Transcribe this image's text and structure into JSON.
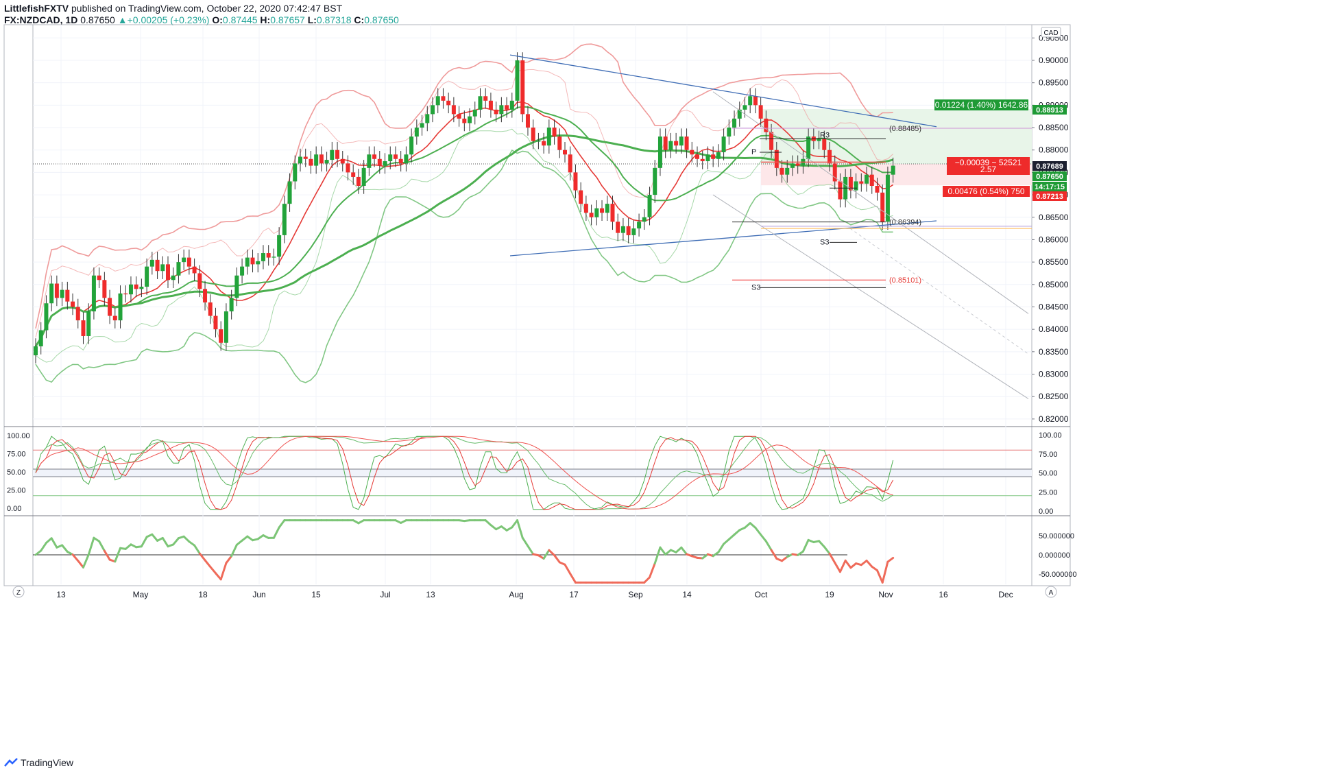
{
  "header": {
    "author": "LittlefishFXTV",
    "published_text": "published on TradingView.com, October 22, 2020 07:42:47 BST",
    "symbol": "FX:NZDCAD, 1D",
    "last": "0.87650",
    "change": "+0.00205 (+0.23%)",
    "o_label": "O:",
    "o": "0.87445",
    "h_label": "H:",
    "h": "0.87657",
    "l_label": "L:",
    "l": "0.87318",
    "c_label": "C:",
    "c": "0.87650"
  },
  "footer": {
    "brand": "TradingView"
  },
  "colors": {
    "up": "#22a33a",
    "down": "#ef2b2b",
    "ma_slow": "#4caf50",
    "ma_fast": "#e53935",
    "band_red": "#ef9a9a",
    "band_green": "#81c784",
    "trendline": "#3f6db5",
    "long_box": "#e8f5e9",
    "short_box": "#fde7e9"
  },
  "chart_data": [
    {
      "type": "candlestick",
      "pair": "NZDCAD",
      "timeframe": "1D",
      "currency": "CAD",
      "x_ticks": [
        "13",
        "May",
        "18",
        "Jun",
        "15",
        "Jul",
        "13",
        "Aug",
        "17",
        "Sep",
        "14",
        "Oct",
        "19",
        "Nov",
        "16",
        "Dec"
      ],
      "y_ticks": [
        "0.90500",
        "0.90000",
        "0.89500",
        "0.89000",
        "0.88500",
        "0.88000",
        "0.87500",
        "0.87000",
        "0.86500",
        "0.86000",
        "0.85500",
        "0.85000",
        "0.84500",
        "0.84000",
        "0.83500",
        "0.83000",
        "0.82500",
        "0.82000"
      ],
      "ylim": [
        0.8183,
        0.9078
      ],
      "price_labels": [
        {
          "text": "0.88913",
          "kind": "green"
        },
        {
          "text": "0.87689",
          "kind": "dark"
        },
        {
          "text": "0.87650",
          "kind": "green"
        },
        {
          "text": "14:17:15",
          "kind": "green"
        },
        {
          "text": "0.87213",
          "kind": "red"
        }
      ],
      "trade_labels": [
        {
          "text": "0.01224 (1.40%) 1642.86",
          "kind": "green"
        },
        {
          "text": "−0.00039 ~ 52521",
          "kind": "red"
        },
        {
          "text": "2.57",
          "kind": "red"
        },
        {
          "text": "0.00476 (0.54%) 750",
          "kind": "red"
        }
      ],
      "pivot_labels": [
        "R3",
        "P",
        "S3",
        "S3"
      ],
      "level_labels": [
        {
          "text": "(0.88485)",
          "value": 0.88485
        },
        {
          "text": "(0.86394)",
          "value": 0.86394
        },
        {
          "text": "(0.85101)",
          "value": 0.85101
        }
      ],
      "closes": [
        0.8362,
        0.8398,
        0.8458,
        0.8502,
        0.847,
        0.8488,
        0.8462,
        0.845,
        0.842,
        0.8385,
        0.844,
        0.852,
        0.851,
        0.847,
        0.843,
        0.842,
        0.848,
        0.8478,
        0.85,
        0.849,
        0.8495,
        0.854,
        0.8555,
        0.853,
        0.8545,
        0.851,
        0.852,
        0.855,
        0.856,
        0.854,
        0.8525,
        0.849,
        0.846,
        0.843,
        0.84,
        0.837,
        0.844,
        0.847,
        0.852,
        0.854,
        0.856,
        0.8545,
        0.8552,
        0.857,
        0.856,
        0.8562,
        0.861,
        0.868,
        0.873,
        0.877,
        0.8785,
        0.878,
        0.8765,
        0.879,
        0.877,
        0.8778,
        0.88,
        0.878,
        0.877,
        0.875,
        0.874,
        0.872,
        0.876,
        0.879,
        0.878,
        0.8765,
        0.8775,
        0.879,
        0.878,
        0.877,
        0.879,
        0.883,
        0.885,
        0.886,
        0.888,
        0.89,
        0.892,
        0.891,
        0.89,
        0.888,
        0.887,
        0.886,
        0.8875,
        0.889,
        0.892,
        0.891,
        0.889,
        0.888,
        0.89,
        0.889,
        0.891,
        0.9,
        0.888,
        0.885,
        0.882,
        0.882,
        0.881,
        0.885,
        0.883,
        0.88,
        0.879,
        0.875,
        0.871,
        0.868,
        0.866,
        0.865,
        0.867,
        0.866,
        0.868,
        0.864,
        0.8615,
        0.863,
        0.861,
        0.8625,
        0.864,
        0.865,
        0.87,
        0.876,
        0.883,
        0.88,
        0.882,
        0.881,
        0.883,
        0.88,
        0.879,
        0.878,
        0.8775,
        0.879,
        0.878,
        0.8795,
        0.883,
        0.885,
        0.887,
        0.889,
        0.89,
        0.892,
        0.89,
        0.887,
        0.884,
        0.88,
        0.876,
        0.8745,
        0.876,
        0.877,
        0.8765,
        0.878,
        0.883,
        0.882,
        0.8825,
        0.88,
        0.877,
        0.873,
        0.869,
        0.874,
        0.871,
        0.873,
        0.8725,
        0.8745,
        0.872,
        0.8705,
        0.864,
        0.8745,
        0.8765
      ]
    },
    {
      "type": "line",
      "name": "stochastic",
      "y_ticks": [
        "100.00",
        "75.00",
        "50.00",
        "25.00",
        "0.00"
      ],
      "y_ticks_left": [
        "100.00",
        "75.00",
        "50.00",
        "25.00",
        "0.00"
      ],
      "ylim": [
        0,
        100
      ],
      "levels": [
        80,
        55,
        45,
        20
      ]
    },
    {
      "type": "line",
      "name": "oscillator",
      "y_ticks": [
        "50.000000",
        "0.000000",
        "-50.000000"
      ],
      "ylim": [
        -75,
        95
      ]
    }
  ],
  "scale_buttons": {
    "z": "Z",
    "a": "A"
  }
}
